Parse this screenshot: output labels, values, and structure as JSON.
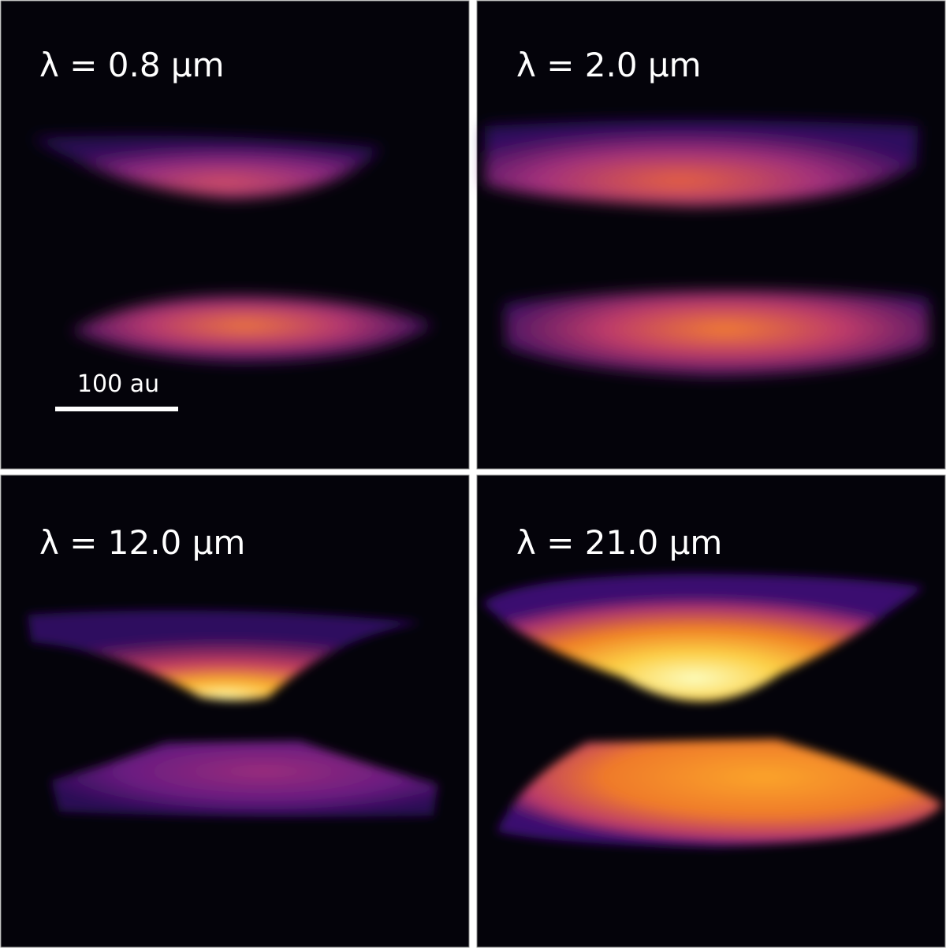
{
  "panels": [
    {
      "label": "λ =  0.8 μm"
    },
    {
      "label": "λ =  2.0 μm"
    },
    {
      "label": "λ =  12.0 μm"
    },
    {
      "label": "λ =  21.0 μm"
    }
  ],
  "scale_bar": {
    "label": "100 au"
  }
}
